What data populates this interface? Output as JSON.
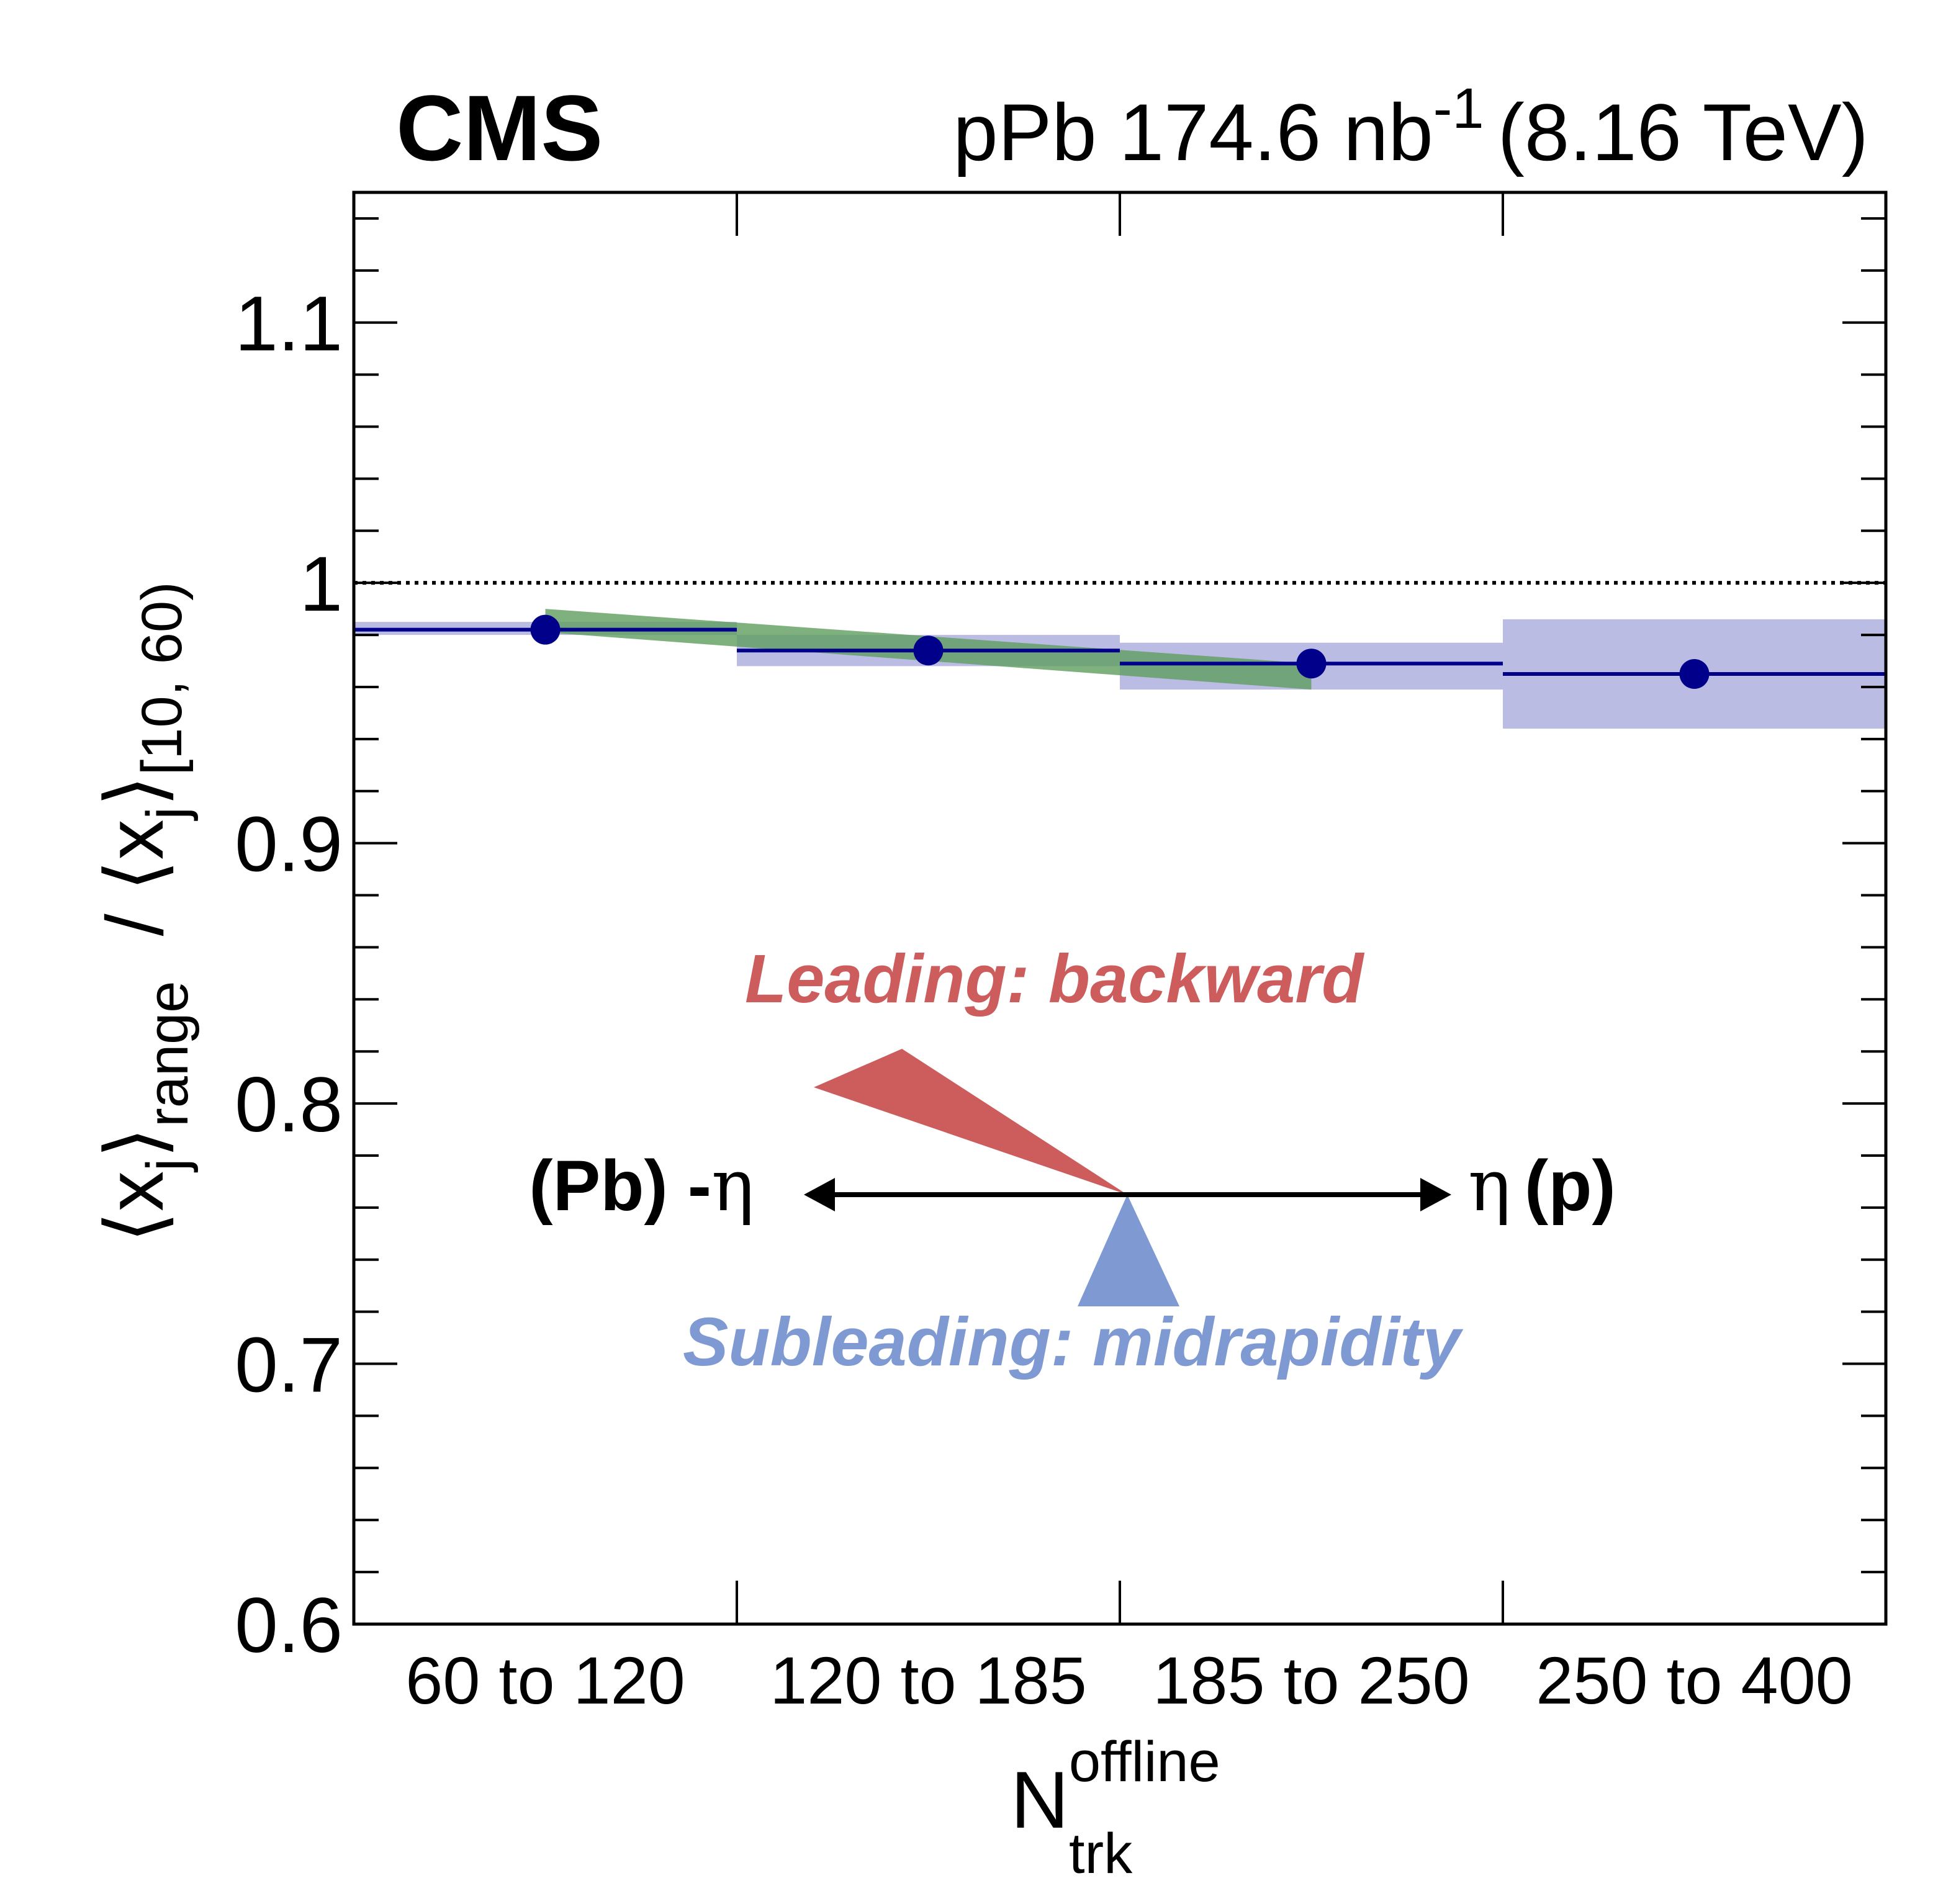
{
  "header": {
    "experiment": "CMS",
    "lumi_prefix": "pPb 174.6 nb",
    "lumi_exponent": "-1",
    "energy": "(8.16 TeV)"
  },
  "chart_data": {
    "type": "scatter",
    "categories": [
      "60 to 120",
      "120 to 185",
      "185 to 250",
      "250 to 400"
    ],
    "ylim": [
      0.6,
      1.15
    ],
    "yticks": [
      "0.6",
      "0.7",
      "0.8",
      "0.9",
      "1",
      "1.1"
    ],
    "xlabel": {
      "base": "N",
      "sub": "trk",
      "sup": "offline"
    },
    "ylabel": {
      "num_sub": "range",
      "den_sub": "[10, 60)"
    },
    "reference_line": 1.0,
    "series": [
      {
        "values": [
          0.982,
          0.974,
          0.969,
          0.965
        ],
        "syst_low": [
          0.98,
          0.968,
          0.959,
          0.944
        ],
        "syst_high": [
          0.985,
          0.98,
          0.977,
          0.986
        ],
        "color": "#00008b",
        "band_color": "#8e8fd0"
      }
    ],
    "trend_band": {
      "color": "#5f9e5f",
      "x_from_category": 0.5,
      "x_to_category": 2.5,
      "start": [
        0.981,
        0.99
      ],
      "end": [
        0.959,
        0.969
      ]
    },
    "grid": false,
    "legend": "none"
  },
  "annotation": {
    "leading": "Leading: backward",
    "subleading": "Subleading: midrapidity",
    "left_side": "(Pb) -",
    "left_symbol": "η",
    "right_symbol": "η",
    "right_side": "(p)",
    "leading_color": "#cd5c5c",
    "subleading_color": "#7f9ad3"
  }
}
